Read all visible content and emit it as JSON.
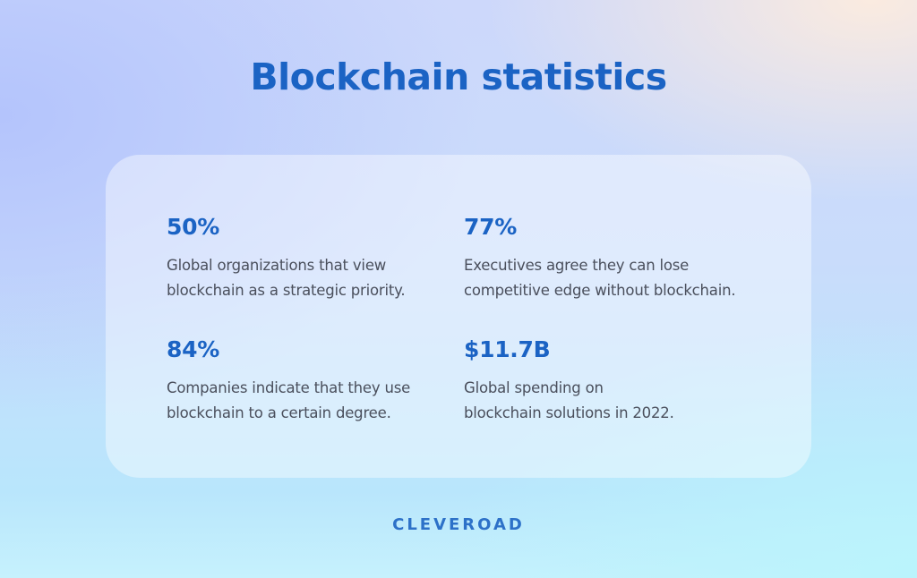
{
  "title": "Blockchain statistics",
  "stats": [
    {
      "value": "50%",
      "line1": "Global organizations that view",
      "line2": "blockchain as a strategic priority."
    },
    {
      "value": "77%",
      "line1": "Executives agree they can lose",
      "line2": "competitive edge without blockchain."
    },
    {
      "value": "84%",
      "line1": "Companies indicate that they use",
      "line2": "blockchain to a certain degree."
    },
    {
      "value": "$11.7B",
      "line1": "Global spending on",
      "line2": "blockchain solutions in 2022."
    }
  ],
  "brand": "CLEVEROAD",
  "colors": {
    "accent": "#1b63c4",
    "text": "#4a4f5c"
  }
}
